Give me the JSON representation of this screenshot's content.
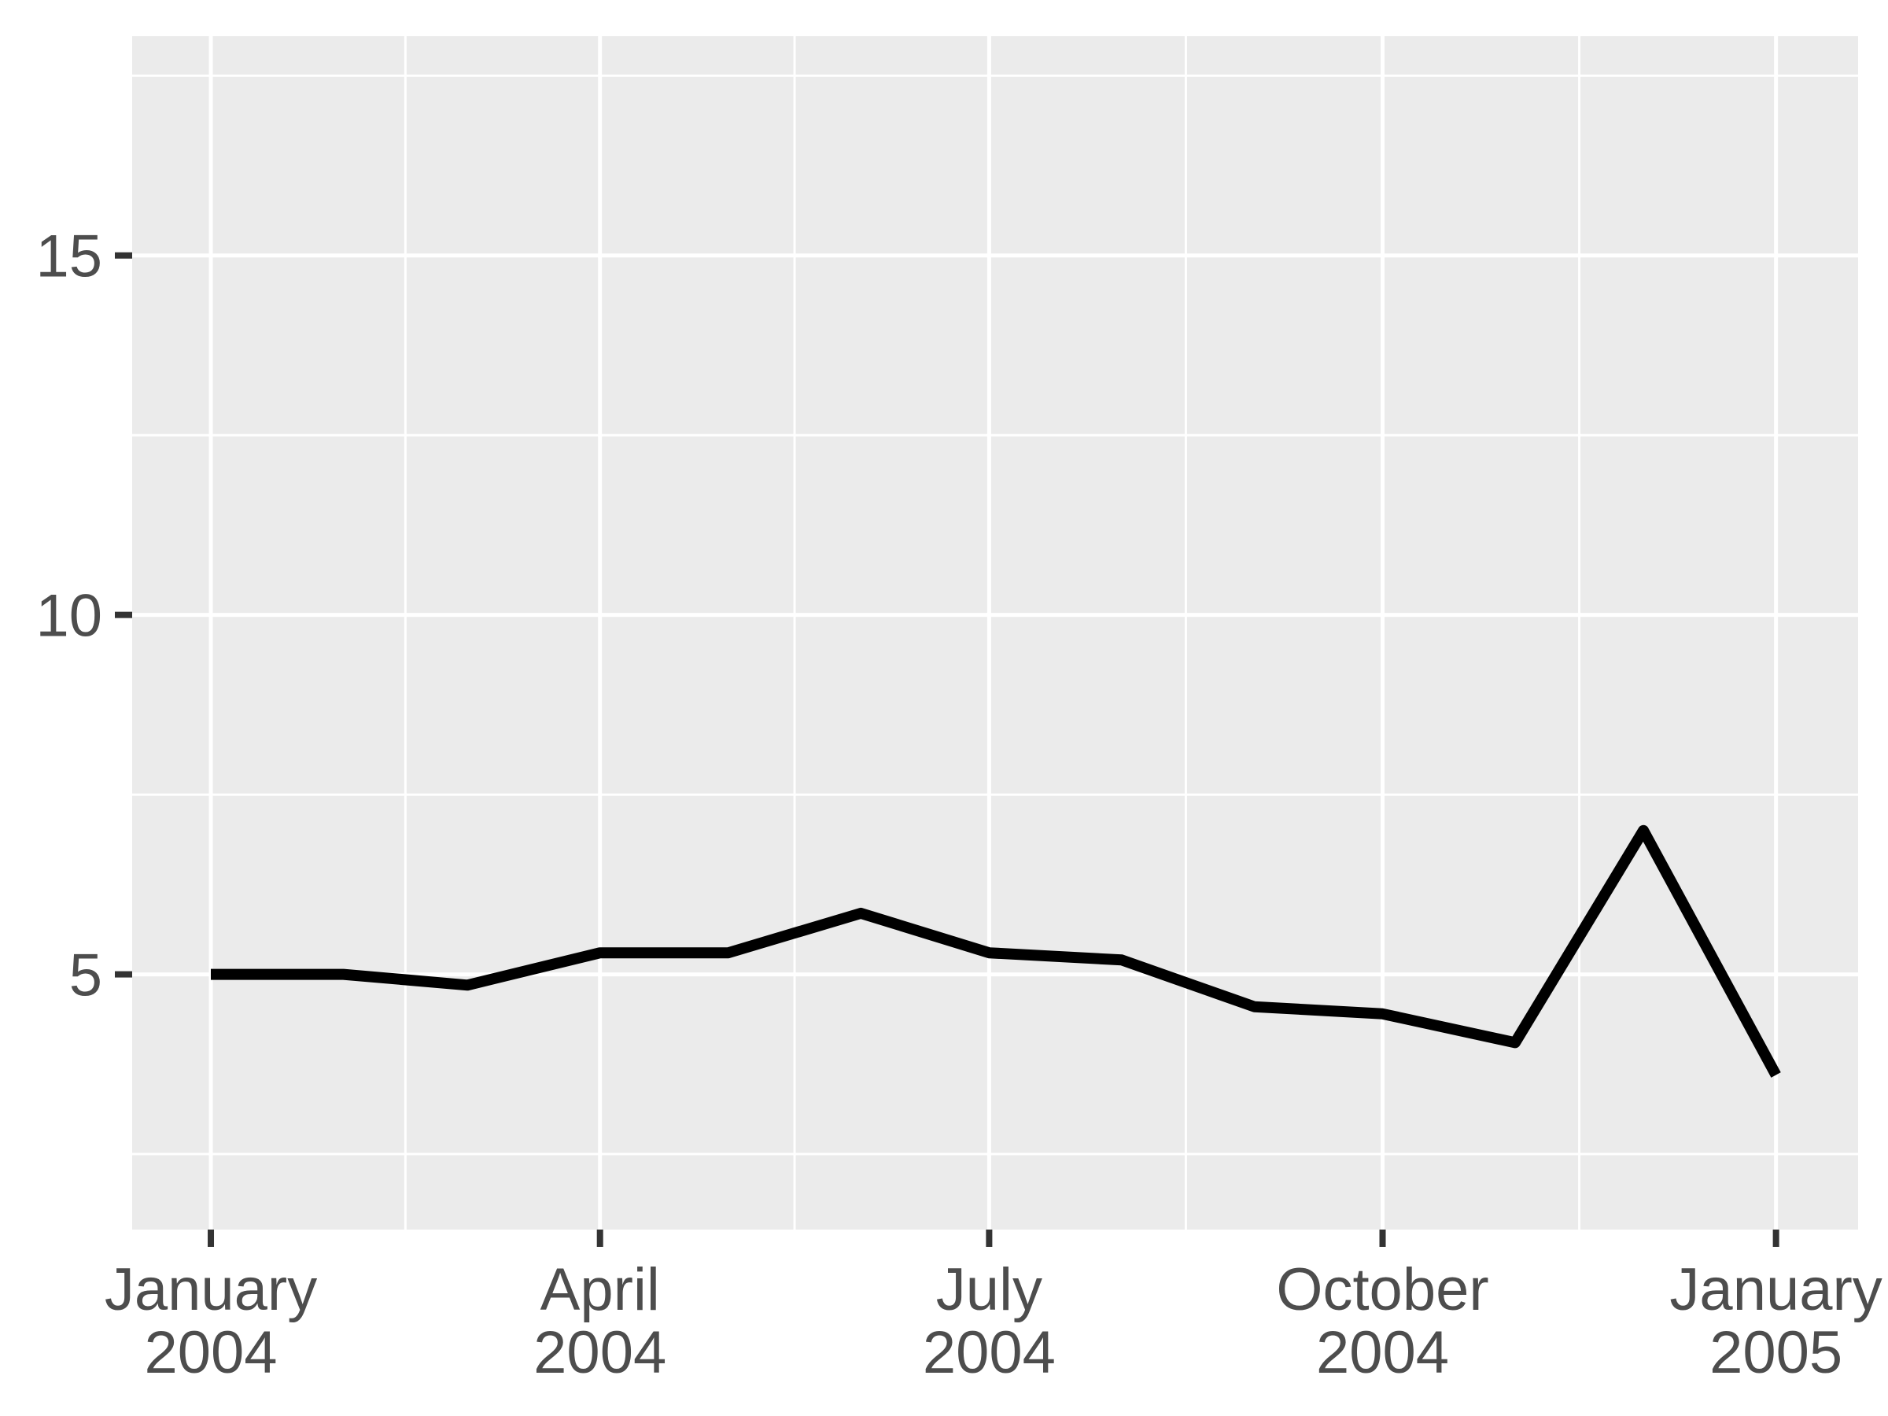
{
  "chart_data": {
    "type": "line",
    "title": "",
    "xlabel": "",
    "ylabel": "",
    "legend": "none",
    "grid": "major+minor",
    "x": [
      "2004-01-01",
      "2004-02-01",
      "2004-03-01",
      "2004-04-01",
      "2004-05-01",
      "2004-06-01",
      "2004-07-01",
      "2004-08-01",
      "2004-09-01",
      "2004-10-01",
      "2004-11-01",
      "2004-12-01",
      "2005-01-01"
    ],
    "values": [
      5.0,
      5.0,
      4.85,
      5.3,
      5.3,
      5.85,
      5.3,
      5.2,
      4.55,
      4.45,
      4.05,
      7.0,
      3.6
    ],
    "x_major_ticks": [
      "2004-01-01",
      "2004-04-01",
      "2004-07-01",
      "2004-10-01",
      "2005-01-01"
    ],
    "x_tick_labels": [
      {
        "top": "January",
        "bottom": "2004"
      },
      {
        "top": "April",
        "bottom": "2004"
      },
      {
        "top": "July",
        "bottom": "2004"
      },
      {
        "top": "October",
        "bottom": "2004"
      },
      {
        "top": "January",
        "bottom": "2005"
      }
    ],
    "y_major_ticks": [
      5,
      10,
      15
    ],
    "y_tick_labels": [
      "5",
      "10",
      "15"
    ],
    "y_minor_ticks": [
      2.5,
      7.5,
      12.5,
      17.5
    ],
    "axes": {
      "x_origin": "2004-01-01",
      "xlim_days": [
        -18.4,
        385.2
      ],
      "ylim": [
        1.45,
        18.05
      ]
    },
    "colors": {
      "line": "#000000",
      "panel_bg": "#EBEBEB",
      "grid": "#FFFFFF",
      "axis_text": "#4D4D4D",
      "tick_mark": "#333333",
      "outer_bg": "#FFFFFF"
    }
  }
}
